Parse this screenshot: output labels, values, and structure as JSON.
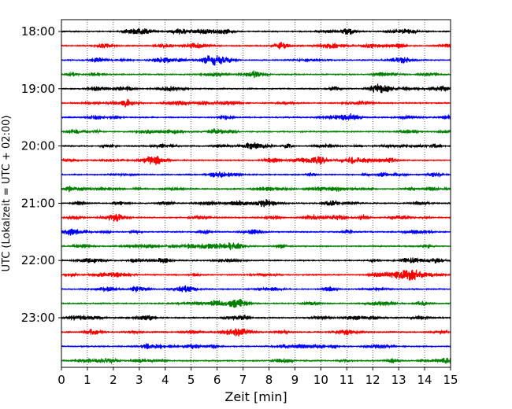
{
  "chart_data": {
    "type": "line",
    "title": "",
    "xlabel": "Zeit  [min]",
    "ylabel": "UTC (Lokalzeit = UTC + 02:00)",
    "xlim": [
      0,
      15
    ],
    "x_ticks": [
      0,
      1,
      2,
      3,
      4,
      5,
      6,
      7,
      8,
      9,
      10,
      11,
      12,
      13,
      14,
      15
    ],
    "x_tick_labels": [
      "0",
      "1",
      "2",
      "3",
      "4",
      "5",
      "6",
      "7",
      "8",
      "9",
      "10",
      "11",
      "12",
      "13",
      "14",
      "15"
    ],
    "y_ticks": [
      "18:00",
      "19:00",
      "20:00",
      "21:00",
      "22:00",
      "23:00"
    ],
    "grid": "vertical dotted",
    "description": "Seismogram helicorder: 24 traces of 15 minutes each from 18:00 to 23:45 UTC, colors cycling black, red, blue, green",
    "trace_colors": [
      "#000000",
      "#ff0000",
      "#0000ff",
      "#008000"
    ],
    "traces": [
      {
        "start": "18:00"
      },
      {
        "start": "18:15"
      },
      {
        "start": "18:30"
      },
      {
        "start": "18:45"
      },
      {
        "start": "19:00"
      },
      {
        "start": "19:15"
      },
      {
        "start": "19:30"
      },
      {
        "start": "19:45"
      },
      {
        "start": "20:00"
      },
      {
        "start": "20:15"
      },
      {
        "start": "20:30"
      },
      {
        "start": "20:45"
      },
      {
        "start": "21:00"
      },
      {
        "start": "21:15"
      },
      {
        "start": "21:30"
      },
      {
        "start": "21:45"
      },
      {
        "start": "22:00"
      },
      {
        "start": "22:15"
      },
      {
        "start": "22:30"
      },
      {
        "start": "22:45"
      },
      {
        "start": "23:00"
      },
      {
        "start": "23:15"
      },
      {
        "start": "23:30"
      },
      {
        "start": "23:45"
      }
    ]
  }
}
